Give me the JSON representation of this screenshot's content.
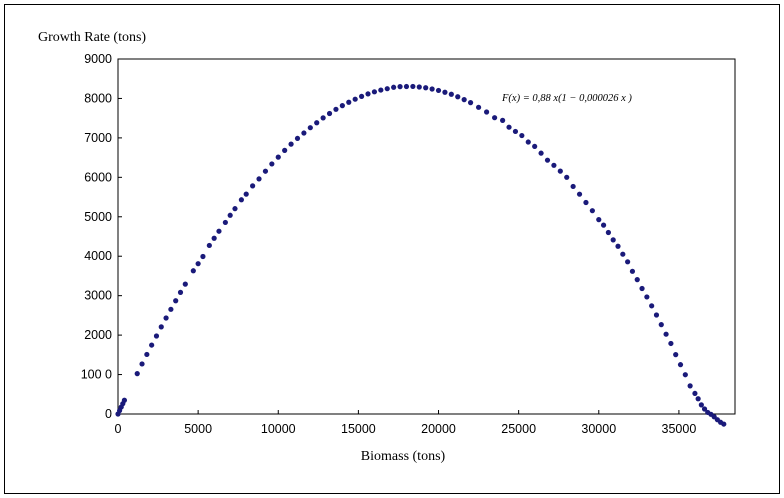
{
  "chart_data": {
    "type": "scatter",
    "title": "",
    "ylabel": "Growth Rate (tons)",
    "xlabel": "Biomass (tons)",
    "xlim": [
      0,
      38500
    ],
    "ylim": [
      0,
      9000
    ],
    "xticks": [
      "0",
      "5000",
      "10000",
      "15000",
      "20000",
      "25000",
      "30000",
      "35000"
    ],
    "yticks": [
      "0",
      "100 0",
      "2000",
      "3000",
      "4000",
      "5000",
      "6000",
      "7000",
      "8000",
      "9000"
    ],
    "annotation": "F(x) = 0,88 x(1 − 0,000026 x )",
    "marker_color": "#1a1a7a",
    "series": [
      {
        "x": [
          0,
          100,
          200,
          300,
          400,
          1200,
          1500,
          1800,
          2100,
          2400,
          2700,
          3000,
          3300,
          3600,
          3900,
          4200,
          4700,
          5000,
          5300,
          5700,
          6000,
          6300,
          6700,
          7000,
          7300,
          7700,
          8000,
          8400,
          8800,
          9200,
          9600,
          10000,
          10400,
          10800,
          11200,
          11600,
          12000,
          12400,
          12800,
          13200,
          13600,
          14000,
          14400,
          14800,
          15200,
          15600,
          16000,
          16400,
          16800,
          17200,
          17600,
          18000,
          18400,
          18800,
          19200,
          19600,
          20000,
          20400,
          20800,
          21200,
          21600,
          22000,
          22500,
          23000,
          23500,
          24000,
          24400,
          24800,
          25200,
          25600,
          26000,
          26400,
          26800,
          27200,
          27600,
          28000,
          28400,
          28800,
          29200,
          29600,
          30000,
          30300,
          30600,
          30900,
          31200,
          31500,
          31800,
          32100,
          32400,
          32700,
          33000,
          33300,
          33600,
          33900,
          34200,
          34500,
          34800,
          35100,
          35400,
          35700,
          36000,
          36200,
          36400,
          36600,
          36800,
          37000,
          37200,
          37400,
          37600,
          37800
        ],
        "y": [
          0,
          88,
          175,
          262,
          349,
          1023,
          1269,
          1510,
          1747,
          1978,
          2209,
          2434,
          2654,
          2871,
          3084,
          3293,
          3631,
          3811,
          3993,
          4273,
          4456,
          4634,
          4857,
          5038,
          5206,
          5431,
          5574,
          5783,
          5960,
          6155,
          6340,
          6512,
          6684,
          6842,
          6987,
          7123,
          7258,
          7384,
          7507,
          7618,
          7725,
          7818,
          7904,
          7981,
          8052,
          8115,
          8168,
          8212,
          8247,
          8283,
          8299,
          8302,
          8305,
          8290,
          8271,
          8239,
          8203,
          8157,
          8106,
          8043,
          7970,
          7894,
          7775,
          7656,
          7512,
          7444,
          7271,
          7163,
          7059,
          6895,
          6784,
          6613,
          6435,
          6305,
          6157,
          6001,
          5769,
          5573,
          5362,
          5155,
          4928,
          4789,
          4602,
          4415,
          4253,
          4051,
          3858,
          3617,
          3407,
          3182,
          2968,
          2742,
          2510,
          2266,
          2023,
          1788,
          1505,
          1251,
          996,
          713,
          522,
          387,
          231,
          127,
          40,
          -8,
          -70,
          -145,
          -210,
          -256
        ]
      }
    ]
  }
}
